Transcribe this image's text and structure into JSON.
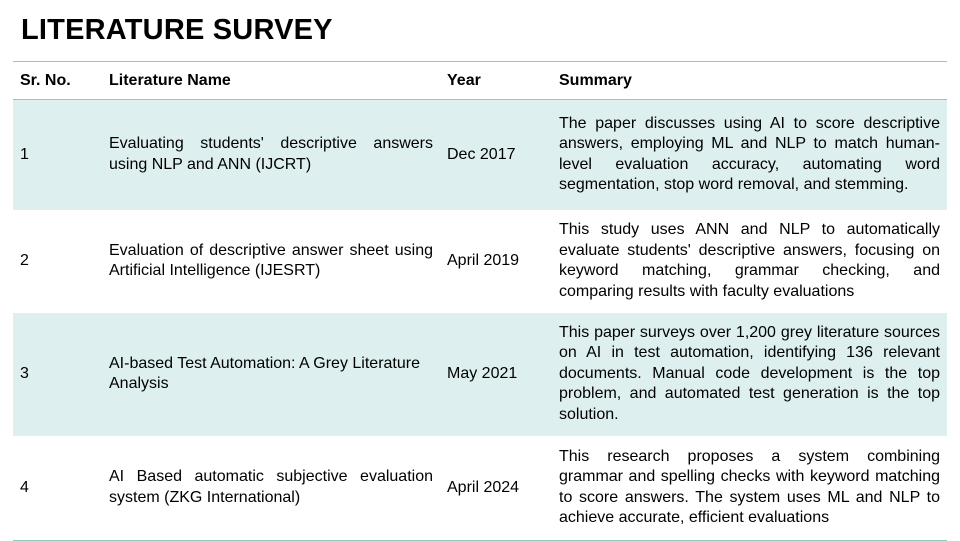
{
  "title": "LITERATURE SURVEY",
  "colors": {
    "row_tint": "#deeff0",
    "rule": "#8fc9c5"
  },
  "table": {
    "headers": [
      "Sr. No.",
      "Literature Name",
      "Year",
      "Summary"
    ],
    "rows": [
      {
        "sr": "1",
        "name": "Evaluating students' descriptive answers using NLP and ANN (IJCRT)",
        "year": "Dec 2017",
        "summary": "The paper discusses using AI to score descriptive answers, employing ML and NLP to match human-level evaluation accuracy, automating word segmentation, stop word removal, and stemming."
      },
      {
        "sr": "2",
        "name": "Evaluation of descriptive answer sheet using Artificial Intelligence (IJESRT)",
        "year": "April 2019",
        "summary": "This study uses ANN and NLP to automatically evaluate students' descriptive answers, focusing on keyword matching, grammar checking, and comparing results with faculty evaluations"
      },
      {
        "sr": "3",
        "name": "AI-based Test Automation: A Grey Literature Analysis",
        "year": "May 2021",
        "summary": "This paper surveys over 1,200 grey literature sources on AI in test automation, identifying 136 relevant documents. Manual code development is the top problem, and automated test generation is the top solution."
      },
      {
        "sr": "4",
        "name": "AI Based automatic subjective evaluation system (ZKG International)",
        "year": "April 2024",
        "summary": "This research proposes a system combining grammar and spelling checks with keyword matching to score answers. The system uses ML and NLP to achieve accurate, efficient evaluations"
      }
    ]
  }
}
